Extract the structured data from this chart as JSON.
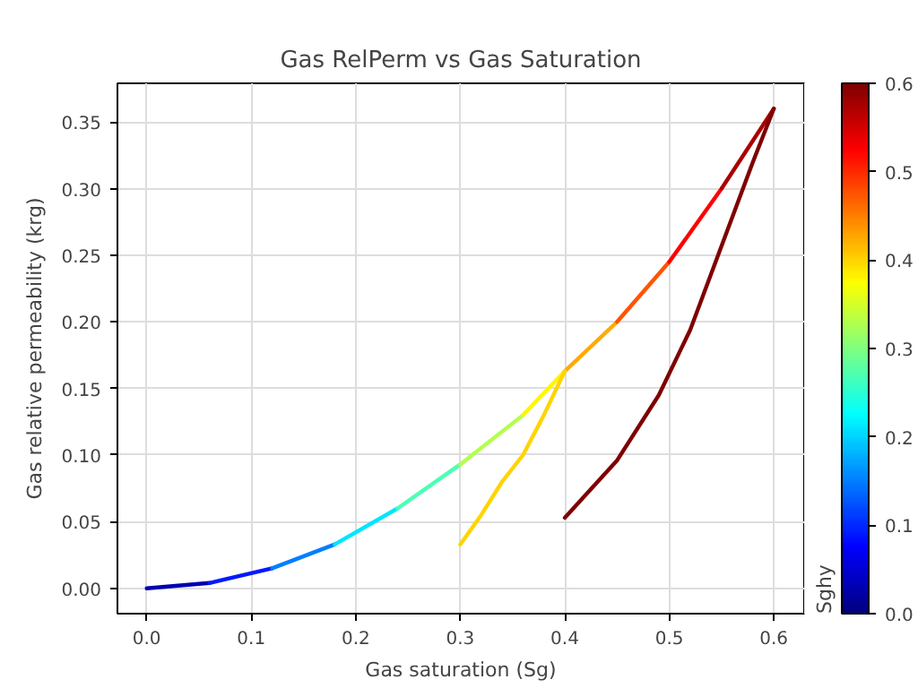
{
  "chart_data": {
    "type": "line",
    "title": "Gas RelPerm vs Gas Saturation",
    "xlabel": "Gas saturation (Sg)",
    "ylabel": "Gas relative permeability (krg)",
    "clabel": "Sghy",
    "series": [
      {
        "x": [
          0,
          0.06
        ],
        "values": [
          0,
          0.004
        ],
        "color": "#0000b2"
      },
      {
        "x": [
          0.06,
          0.12
        ],
        "values": [
          0.004,
          0.015
        ],
        "color": "#0019ff"
      },
      {
        "x": [
          0.12,
          0.18
        ],
        "values": [
          0.015,
          0.033
        ],
        "color": "#007fff"
      },
      {
        "x": [
          0.18,
          0.24
        ],
        "values": [
          0.033,
          0.06
        ],
        "color": "#00e5ff"
      },
      {
        "x": [
          0.24,
          0.3
        ],
        "values": [
          0.06,
          0.093
        ],
        "color": "#4cffb2"
      },
      {
        "x": [
          0.3,
          0.36
        ],
        "values": [
          0.093,
          0.13
        ],
        "color": "#b2ff4c"
      },
      {
        "x": [
          0.36,
          0.4
        ],
        "values": [
          0.13,
          0.163
        ],
        "color": "#fff600"
      },
      {
        "x": [
          0.4,
          0.45
        ],
        "values": [
          0.163,
          0.2
        ],
        "color": "#ffaa00"
      },
      {
        "x": [
          0.45,
          0.5
        ],
        "values": [
          0.2,
          0.245
        ],
        "color": "#ff5400"
      },
      {
        "x": [
          0.5,
          0.55
        ],
        "values": [
          0.245,
          0.3
        ],
        "color": "#ff0000"
      },
      {
        "x": [
          0.55,
          0.6
        ],
        "values": [
          0.3,
          0.36
        ],
        "color": "#aa0000"
      },
      {
        "x": [
          0.3,
          0.32,
          0.34,
          0.36,
          0.38,
          0.4
        ],
        "values": [
          0.033,
          0.055,
          0.08,
          0.1,
          0.13,
          0.163
        ],
        "color": "#ffd400"
      },
      {
        "x": [
          0.4,
          0.45,
          0.49,
          0.52,
          0.55,
          0.58,
          0.6
        ],
        "values": [
          0.053,
          0.096,
          0.145,
          0.194,
          0.257,
          0.32,
          0.36
        ],
        "color": "#7f0000"
      }
    ],
    "xlim": [
      -0.028,
      0.629
    ],
    "ylim": [
      -0.019,
      0.379
    ],
    "xticks": [
      {
        "value": 0,
        "label": "0.0"
      },
      0.1,
      0.2,
      0.3,
      0.4,
      0.5,
      0.6
    ],
    "yticks": [
      {
        "value": 0,
        "label": "0.00"
      },
      0.05,
      {
        "value": 0.1,
        "label": "0.10"
      },
      0.15,
      {
        "value": 0.2,
        "label": "0.20"
      },
      0.25,
      {
        "value": 0.3,
        "label": "0.30"
      },
      0.35
    ],
    "clim": [
      0,
      0.6
    ],
    "cticks": [
      {
        "value": 0,
        "label": "0.0"
      },
      0.1,
      0.2,
      0.3,
      0.4,
      0.5,
      0.6
    ],
    "grid": true,
    "line_style": "solid",
    "marker": "none"
  }
}
